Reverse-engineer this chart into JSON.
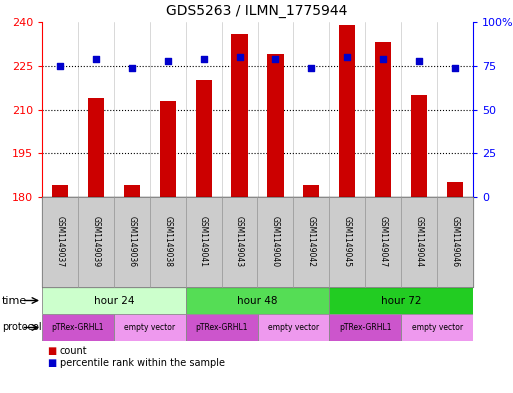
{
  "title": "GDS5263 / ILMN_1775944",
  "samples": [
    "GSM1149037",
    "GSM1149039",
    "GSM1149036",
    "GSM1149038",
    "GSM1149041",
    "GSM1149043",
    "GSM1149040",
    "GSM1149042",
    "GSM1149045",
    "GSM1149047",
    "GSM1149044",
    "GSM1149046"
  ],
  "counts": [
    184,
    214,
    184,
    213,
    220,
    236,
    229,
    184,
    239,
    233,
    215,
    185
  ],
  "percentile_ranks": [
    75,
    79,
    74,
    78,
    79,
    80,
    79,
    74,
    80,
    79,
    78,
    74
  ],
  "ylim_left": [
    180,
    240
  ],
  "ylim_right": [
    0,
    100
  ],
  "yticks_left": [
    180,
    195,
    210,
    225,
    240
  ],
  "yticks_right": [
    0,
    25,
    50,
    75,
    100
  ],
  "ytick_labels_right": [
    "0",
    "25",
    "50",
    "75",
    "100%"
  ],
  "bar_color": "#cc0000",
  "dot_color": "#0000cc",
  "bar_width": 0.45,
  "time_groups": [
    {
      "label": "hour 24",
      "start": 0,
      "end": 4,
      "color": "#ccffcc"
    },
    {
      "label": "hour 48",
      "start": 4,
      "end": 8,
      "color": "#55dd55"
    },
    {
      "label": "hour 72",
      "start": 8,
      "end": 12,
      "color": "#22cc22"
    }
  ],
  "protocol_groups": [
    {
      "label": "pTRex-GRHL1",
      "start": 0,
      "end": 2,
      "color": "#cc55cc"
    },
    {
      "label": "empty vector",
      "start": 2,
      "end": 4,
      "color": "#ee99ee"
    },
    {
      "label": "pTRex-GRHL1",
      "start": 4,
      "end": 6,
      "color": "#cc55cc"
    },
    {
      "label": "empty vector",
      "start": 6,
      "end": 8,
      "color": "#ee99ee"
    },
    {
      "label": "pTRex-GRHL1",
      "start": 8,
      "end": 10,
      "color": "#cc55cc"
    },
    {
      "label": "empty vector",
      "start": 10,
      "end": 12,
      "color": "#ee99ee"
    }
  ],
  "legend_count_color": "#cc0000",
  "legend_dot_color": "#0000cc",
  "background_color": "#ffffff",
  "sample_bg_color": "#cccccc",
  "sample_border_color": "#999999"
}
